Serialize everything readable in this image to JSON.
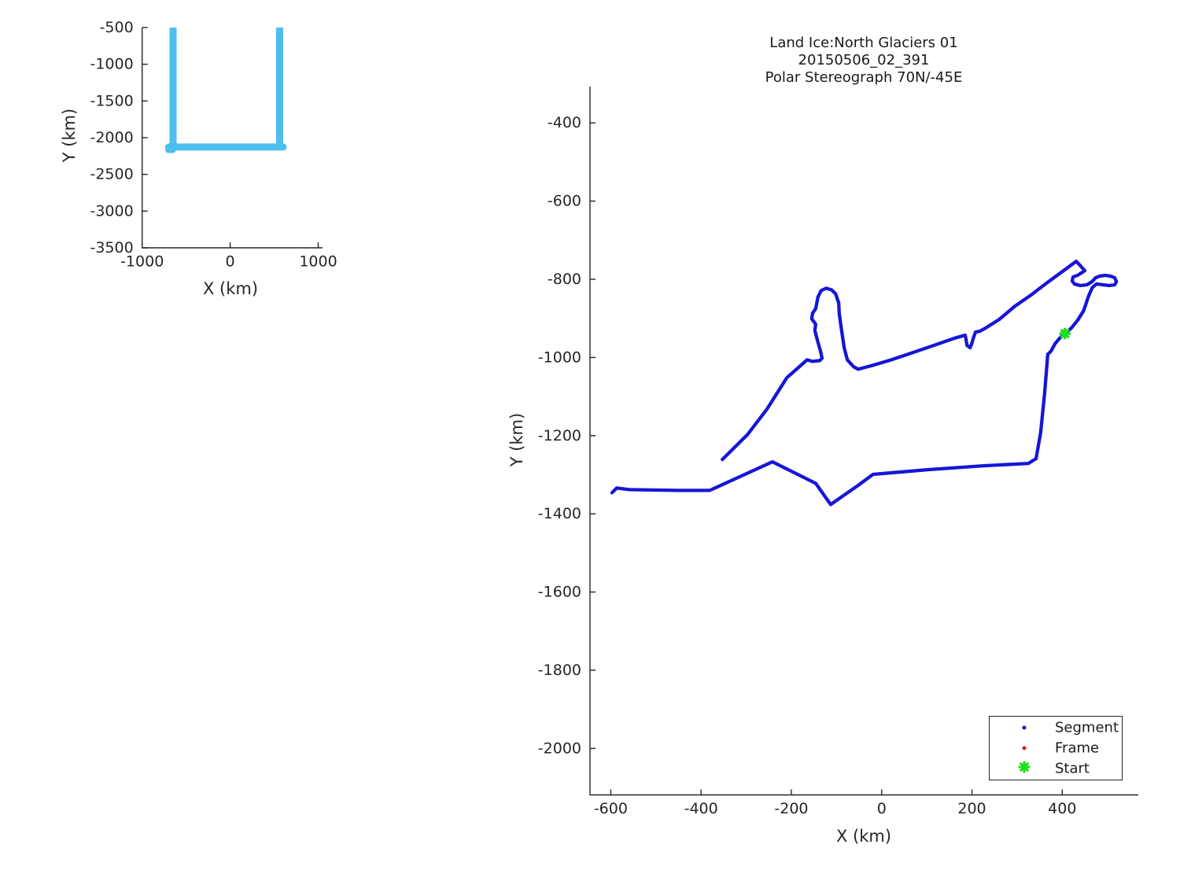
{
  "figure": {
    "background": "#ffffff"
  },
  "colors": {
    "track_blue": "#1616d6",
    "overview_cyan": "#4DBEEE",
    "start_green": "#1ddf1d",
    "frame_red": "#e51c1c",
    "axis": "#262626"
  },
  "legend": {
    "items": [
      {
        "label": "Segment",
        "marker": "dot",
        "color": "#1616d6"
      },
      {
        "label": "Frame",
        "marker": "dot",
        "color": "#e51c1c"
      },
      {
        "label": "Start",
        "marker": "asterisk",
        "color": "#1ddf1d"
      }
    ]
  },
  "chart_data": [
    {
      "id": "overview",
      "type": "line",
      "title": "",
      "xlabel": "X (km)",
      "ylabel": "Y (km)",
      "xlim": [
        -1000,
        1049
      ],
      "ylim": [
        -500,
        -3500
      ],
      "xticks": [
        -1000,
        0,
        1000
      ],
      "yticks": [
        -500,
        -1000,
        -1500,
        -2000,
        -2500,
        -3000,
        -3500
      ],
      "grid": false,
      "series": [
        {
          "name": "flight-track-left-leg",
          "color": "#4DBEEE",
          "width": 9,
          "cap": "butt",
          "points": [
            [
              -649,
              -500
            ],
            [
              -649,
              -2120
            ]
          ]
        },
        {
          "name": "flight-track-bottom-leg",
          "color": "#4DBEEE",
          "width": 9,
          "cap": "round",
          "points": [
            [
              -700,
              -2128
            ],
            [
              602,
              -2128
            ]
          ]
        },
        {
          "name": "flight-track-corner-step",
          "color": "#4DBEEE",
          "width": 8,
          "cap": "round",
          "points": [
            [
              -702,
              -2166
            ],
            [
              -652,
              -2166
            ]
          ]
        },
        {
          "name": "flight-track-right-leg",
          "color": "#4DBEEE",
          "width": 9,
          "cap": "butt",
          "points": [
            [
              562,
              -2128
            ],
            [
              562,
              -500
            ]
          ]
        }
      ]
    },
    {
      "id": "main",
      "type": "line",
      "title_lines": [
        "Land Ice:North Glaciers 01",
        "20150506_02_391",
        "Polar Stereograph 70N/-45E"
      ],
      "xlabel": "X (km)",
      "ylabel": "Y (km)",
      "xlim": [
        -646,
        568.5
      ],
      "ylim": [
        -307,
        -2119
      ],
      "xticks": [
        -600,
        -400,
        -200,
        0,
        200,
        400
      ],
      "yticks": [
        -400,
        -600,
        -800,
        -1000,
        -1200,
        -1400,
        -1600,
        -1800,
        -2000
      ],
      "grid": false,
      "legend_position": "lower right",
      "series": [
        {
          "name": "Segment",
          "color": "#1616d6",
          "width": 4.3,
          "cap": "round",
          "points": [
            [
              -597,
              -1346
            ],
            [
              -587,
              -1334
            ],
            [
              -559,
              -1338
            ],
            [
              -454,
              -1340
            ],
            [
              -381,
              -1340
            ],
            [
              -242,
              -1267
            ],
            [
              -146,
              -1322
            ],
            [
              -113,
              -1376
            ],
            [
              -53,
              -1328
            ],
            [
              -19,
              -1299
            ],
            [
              103,
              -1287
            ],
            [
              225,
              -1277
            ],
            [
              325,
              -1271
            ],
            [
              342,
              -1259
            ],
            [
              352,
              -1193
            ],
            [
              361,
              -1092
            ],
            [
              368,
              -992
            ],
            [
              375,
              -984
            ],
            [
              384,
              -965
            ],
            [
              394,
              -951
            ],
            [
              406,
              -939
            ],
            [
              420,
              -925
            ],
            [
              434,
              -905
            ],
            [
              447,
              -881
            ],
            [
              452,
              -865
            ],
            [
              457,
              -847
            ],
            [
              462,
              -833
            ],
            [
              467,
              -821
            ],
            [
              476,
              -812
            ],
            [
              490,
              -814
            ],
            [
              504,
              -816
            ],
            [
              516,
              -814
            ],
            [
              520,
              -806
            ],
            [
              516,
              -796
            ],
            [
              507,
              -792
            ],
            [
              495,
              -790
            ],
            [
              483,
              -792
            ],
            [
              474,
              -796
            ],
            [
              466,
              -806
            ],
            [
              455,
              -814
            ],
            [
              440,
              -816
            ],
            [
              427,
              -812
            ],
            [
              422,
              -804
            ],
            [
              424,
              -794
            ],
            [
              434,
              -790
            ],
            [
              450,
              -778
            ],
            [
              431,
              -754
            ],
            [
              410,
              -772
            ],
            [
              365,
              -810
            ],
            [
              330,
              -841
            ],
            [
              295,
              -869
            ],
            [
              260,
              -903
            ],
            [
              230,
              -925
            ],
            [
              217,
              -933
            ],
            [
              208,
              -935
            ],
            [
              203,
              -951
            ],
            [
              199,
              -967
            ],
            [
              196,
              -975
            ],
            [
              189,
              -969
            ],
            [
              187,
              -955
            ],
            [
              185,
              -943
            ],
            [
              161,
              -951
            ],
            [
              116,
              -969
            ],
            [
              68,
              -988
            ],
            [
              21,
              -1006
            ],
            [
              -19,
              -1020
            ],
            [
              -52,
              -1030
            ],
            [
              -62,
              -1024
            ],
            [
              -76,
              -1006
            ],
            [
              -83,
              -975
            ],
            [
              -90,
              -921
            ],
            [
              -94,
              -887
            ],
            [
              -95,
              -861
            ],
            [
              -102,
              -837
            ],
            [
              -111,
              -827
            ],
            [
              -123,
              -823
            ],
            [
              -134,
              -829
            ],
            [
              -141,
              -845
            ],
            [
              -146,
              -875
            ],
            [
              -153,
              -887
            ],
            [
              -155,
              -901
            ],
            [
              -146,
              -915
            ],
            [
              -148,
              -931
            ],
            [
              -142,
              -957
            ],
            [
              -135,
              -986
            ],
            [
              -132,
              -1002
            ],
            [
              -137,
              -1008
            ],
            [
              -153,
              -1010
            ],
            [
              -165,
              -1006
            ],
            [
              -210,
              -1052
            ],
            [
              -254,
              -1132
            ],
            [
              -297,
              -1197
            ],
            [
              -353,
              -1261
            ]
          ]
        }
      ],
      "start_marker": {
        "label": "Start",
        "x": 406,
        "y": -939,
        "color": "#1ddf1d"
      }
    }
  ]
}
